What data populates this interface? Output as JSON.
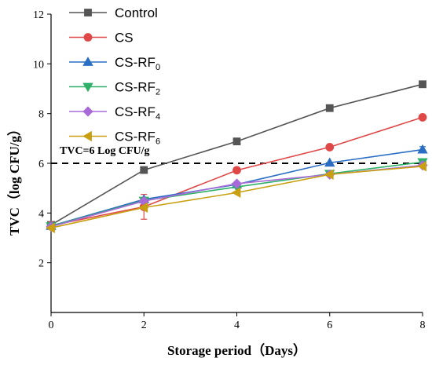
{
  "chart_data": {
    "type": "line",
    "xlabel": "Storage period（Days）",
    "ylabel": "TVC（log CFU/g）",
    "xlim": [
      0,
      8
    ],
    "ylim": [
      0,
      12
    ],
    "x_ticks": [
      0,
      2,
      4,
      6,
      8
    ],
    "y_ticks": [
      2,
      4,
      6,
      8,
      10,
      12
    ],
    "x": [
      0,
      2,
      4,
      6,
      8
    ],
    "grid": false,
    "legend_placement": "top-left",
    "annotation": {
      "text": "TVC=6 Log CFU/g",
      "threshold": 6
    },
    "series": [
      {
        "name": "Control",
        "name_main": "Control",
        "name_sub": "",
        "color": "#555555",
        "marker": "square",
        "values": [
          3.52,
          5.73,
          6.88,
          8.22,
          9.18
        ],
        "errors": [
          0.05,
          0.05,
          0.05,
          0.05,
          0.05
        ]
      },
      {
        "name": "CS",
        "name_main": "CS",
        "name_sub": "",
        "color": "#e04848",
        "marker": "circle",
        "values": [
          3.5,
          4.25,
          5.72,
          6.65,
          7.85
        ],
        "errors": [
          0.05,
          0.5,
          0.05,
          0.05,
          0.05
        ]
      },
      {
        "name": "CS-RF0",
        "name_main": "CS-RF",
        "name_sub": "0",
        "color": "#2a6ec4",
        "marker": "triangle-up",
        "values": [
          3.48,
          4.55,
          5.15,
          6.02,
          6.55
        ],
        "errors": [
          0.05,
          0.05,
          0.05,
          0.05,
          0.12
        ]
      },
      {
        "name": "CS-RF2",
        "name_main": "CS-RF",
        "name_sub": "2",
        "color": "#2eb068",
        "marker": "triangle-down",
        "values": [
          3.47,
          4.5,
          5.05,
          5.58,
          6.05
        ],
        "errors": [
          0.05,
          0.05,
          0.05,
          0.05,
          0.05
        ]
      },
      {
        "name": "CS-RF4",
        "name_main": "CS-RF",
        "name_sub": "4",
        "color": "#a86ad8",
        "marker": "diamond",
        "values": [
          3.45,
          4.48,
          5.18,
          5.55,
          5.92
        ],
        "errors": [
          0.05,
          0.05,
          0.05,
          0.05,
          0.05
        ]
      },
      {
        "name": "CS-RF6",
        "name_main": "CS-RF",
        "name_sub": "6",
        "color": "#c9a012",
        "marker": "triangle-left",
        "values": [
          3.4,
          4.22,
          4.82,
          5.55,
          5.88
        ],
        "errors": [
          0.05,
          0.05,
          0.05,
          0.05,
          0.05
        ]
      }
    ]
  }
}
